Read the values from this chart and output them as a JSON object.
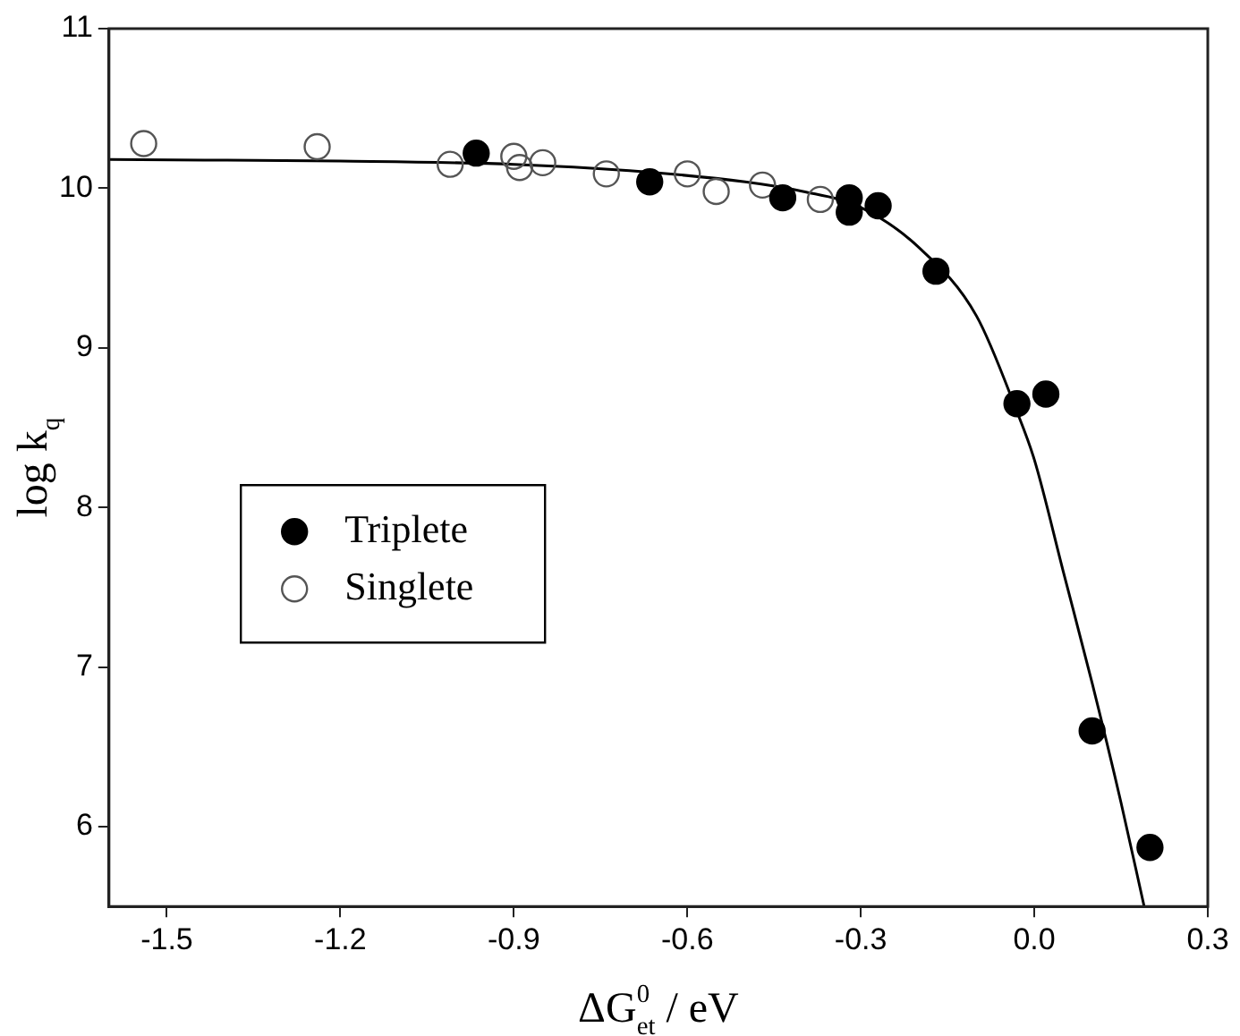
{
  "chart_data": {
    "type": "scatter",
    "xlabel": "ΔG$^{0}$$_{et}$ / eV",
    "ylabel": "log k$_{q}$",
    "xlim": [
      -1.6,
      0.3
    ],
    "xticks": [
      {
        "value": -1.5,
        "label": "-1.5"
      },
      {
        "value": -1.2,
        "label": "-1.2"
      },
      {
        "value": -0.9,
        "label": "-0.9"
      },
      {
        "value": -0.6,
        "label": "-0.6"
      },
      {
        "value": -0.3,
        "label": "-0.3"
      },
      {
        "value": 0,
        "label": "0.0"
      },
      {
        "value": 0.3,
        "label": "0.3"
      }
    ],
    "ylim": [
      5.5,
      11
    ],
    "yticks": [
      6,
      7,
      8,
      9,
      10,
      11
    ],
    "grid": false,
    "legend": "left",
    "series": [
      {
        "name": "Triplete",
        "color": "#000000",
        "marker": "circle",
        "x": [
          -0.965,
          -0.665,
          -0.435,
          -0.32,
          -0.32,
          -0.27,
          -0.17,
          -0.03,
          0.02,
          0.1,
          0.2
        ],
        "values": [
          10.22,
          10.04,
          9.94,
          9.94,
          9.85,
          9.89,
          9.48,
          8.65,
          8.71,
          6.6,
          5.87
        ]
      },
      {
        "name": "Singlete",
        "color": "#555555",
        "marker": "circle",
        "x": [
          -1.54,
          -1.24,
          -1.01,
          -0.9,
          -0.89,
          -0.85,
          -0.74,
          -0.6,
          -0.55,
          -0.47,
          -0.37
        ],
        "values": [
          10.28,
          10.26,
          10.15,
          10.2,
          10.13,
          10.16,
          10.09,
          10.09,
          9.98,
          10.02,
          9.93
        ]
      },
      {
        "type": "line",
        "color": "#000000",
        "marker": "none",
        "x": [
          -1.6,
          -1.2,
          -0.9,
          -0.7,
          -0.5,
          -0.4,
          -0.3,
          -0.2,
          -0.1,
          -0.03,
          0,
          0.05,
          0.1,
          0.15,
          0.19
        ],
        "values": [
          10.18,
          10.17,
          10.15,
          10.11,
          10.04,
          9.98,
          9.88,
          9.63,
          9.2,
          8.6,
          8.3,
          7.6,
          6.9,
          6.15,
          5.5
        ]
      }
    ]
  }
}
